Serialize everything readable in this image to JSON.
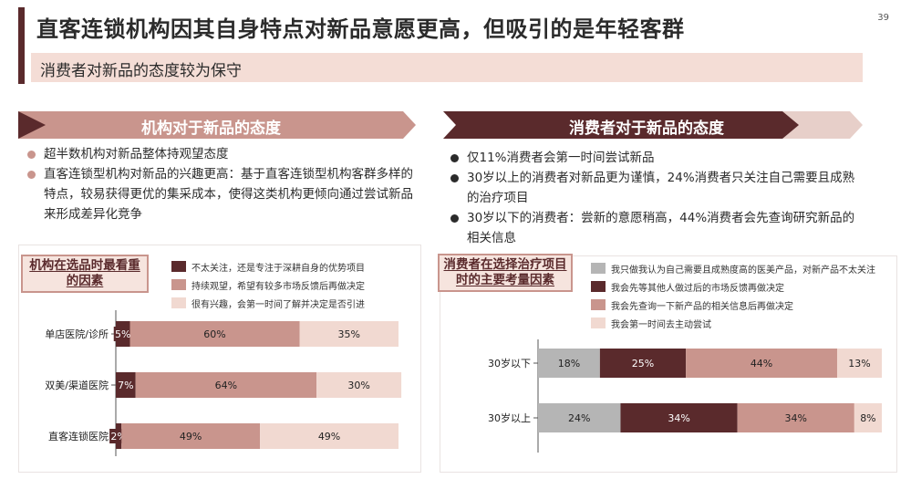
{
  "page": {
    "title": "直客连锁机构因其自身特点对新品意愿更高，但吸引的是年轻客群",
    "subtitle": "消费者对新品的态度较为保守",
    "page_number": "39"
  },
  "colors": {
    "dark": "#5a2a2c",
    "mid": "#c9958d",
    "light": "#f1d9d1",
    "grey": "#b5b5b5",
    "accent_band": "#f4ddd6"
  },
  "left": {
    "banner": "机构对于新品的态度",
    "bullets": [
      "超半数机构对新品整体持观望态度",
      "直客连锁型机构对新品的兴趣更高：基于直客连锁型机构客群多样的特点，较易获得更优的集采成本，使得这类机构更倾向通过尝试新品来形成差异化竞争"
    ],
    "tag": "机构在选品时最看重的因素"
  },
  "right": {
    "banner": "消费者对于新品的态度",
    "bullets": [
      "仅11%消费者会第一时间尝试新品",
      "30岁以上的消费者对新品更为谨慎，24%消费者只关注自己需要且成熟的治疗项目",
      "30岁以下的消费者：尝新的意愿稍高，44%消费者会先查询研究新品的相关信息"
    ],
    "tag": "消费者在选择治疗项目时的主要考量因素"
  },
  "chart_data": [
    {
      "type": "bar",
      "orientation": "horizontal",
      "stacked": true,
      "percent": true,
      "categories": [
        "单店医院/诊所",
        "双美/渠道医院",
        "直客连锁医院"
      ],
      "series": [
        {
          "name": "不太关注，还是专注于深耕自身的优势项目",
          "color": "#5a2a2c",
          "values": [
            5,
            7,
            2
          ]
        },
        {
          "name": "持续观望，希望有较多市场反馈后再做决定",
          "color": "#c9958d",
          "values": [
            60,
            64,
            49
          ]
        },
        {
          "name": "很有兴趣，会第一时间了解并决定是否引进",
          "color": "#f1d9d1",
          "values": [
            35,
            30,
            49
          ]
        }
      ],
      "legend": "top"
    },
    {
      "type": "bar",
      "orientation": "horizontal",
      "stacked": true,
      "percent": true,
      "categories": [
        "30岁以下",
        "30岁以上"
      ],
      "series": [
        {
          "name": "我只做我认为自己需要且成熟度高的医美产品，对新产品不太关注",
          "color": "#b5b5b5",
          "values": [
            18,
            24
          ]
        },
        {
          "name": "我会先等其他人做过后的市场反馈再做决定",
          "color": "#5a2a2c",
          "values": [
            25,
            34
          ]
        },
        {
          "name": "我会先查询一下新产品的相关信息后再做决定",
          "color": "#c9958d",
          "values": [
            44,
            34
          ]
        },
        {
          "name": "我会第一时间去主动尝试",
          "color": "#f1d9d1",
          "values": [
            13,
            8
          ]
        }
      ],
      "legend": "top"
    }
  ]
}
